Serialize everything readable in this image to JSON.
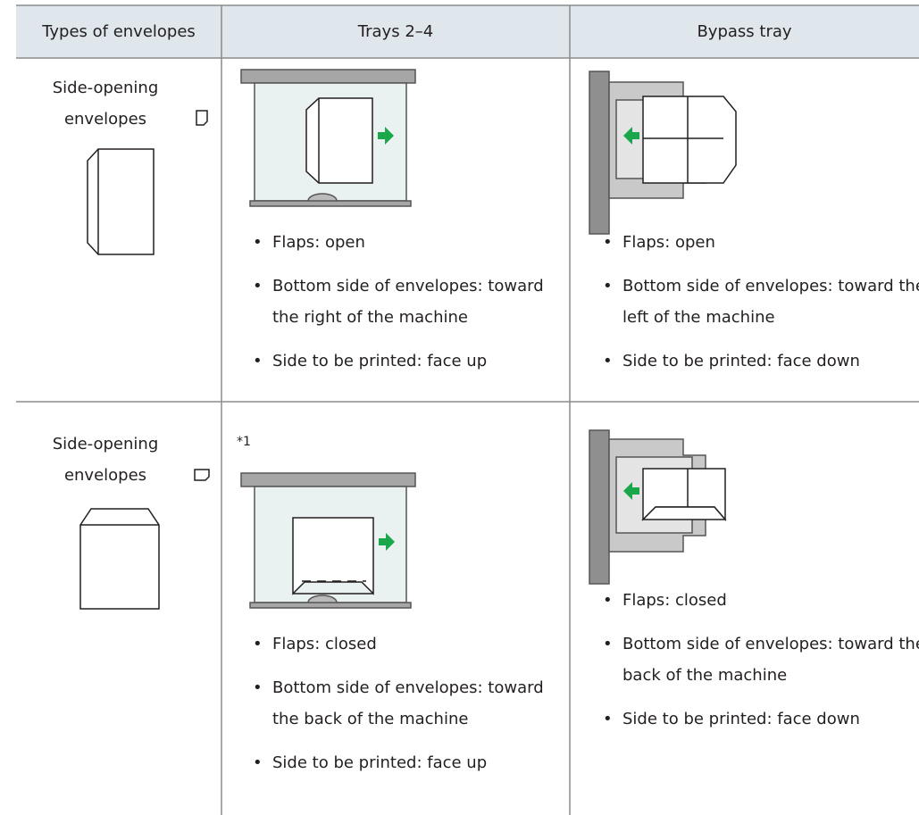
{
  "table": {
    "header": [
      "Types of envelopes",
      "Trays 2–4",
      "Bypass tray"
    ],
    "rows": [
      {
        "type": "Side-opening envelopes",
        "trays": {
          "bullets": [
            "Flaps: open",
            "Bottom side of envelopes: toward the right of the machine",
            "Side to be printed: face up"
          ]
        },
        "bypass": {
          "bullets": [
            "Flaps: open",
            "Bottom side of envelopes: toward the left of the machine",
            "Side to be printed: face down"
          ]
        }
      },
      {
        "type": "Side-opening envelopes",
        "trays": {
          "note": "*1",
          "bullets": [
            "Flaps: closed",
            "Bottom side of envelopes: toward the back of the machine",
            "Side to be printed: face up"
          ]
        },
        "bypass": {
          "bullets": [
            "Flaps: closed",
            "Bottom side of envelopes: toward the back of the machine",
            "Side to be printed: face down"
          ]
        }
      }
    ]
  }
}
